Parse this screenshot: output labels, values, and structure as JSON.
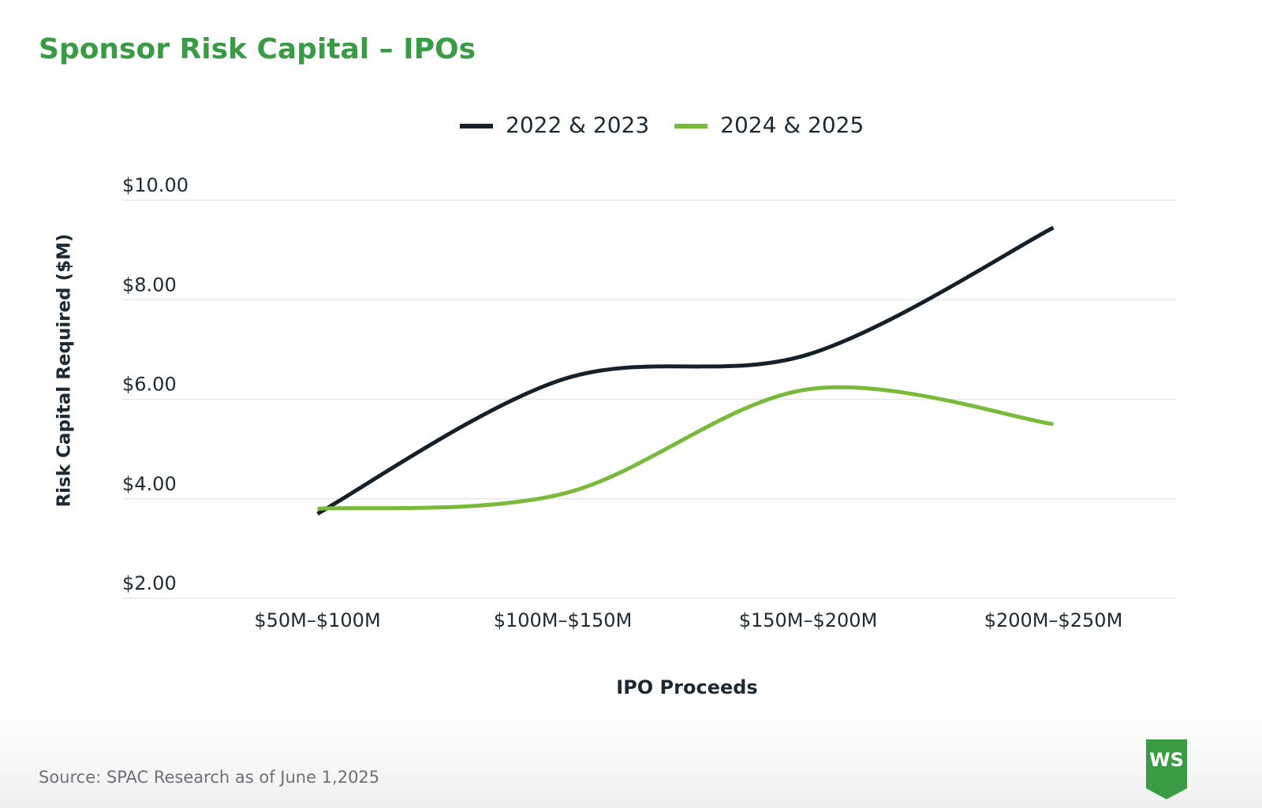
{
  "chart_data": {
    "type": "line",
    "title": "Sponsor Risk Capital – IPOs",
    "x_label": "IPO Proceeds",
    "y_label": "Risk Capital Required ($M)",
    "categories": [
      "$50M–$100M",
      "$100M–$150M",
      "$150M–$200M",
      "$200M–$250M"
    ],
    "series": [
      {
        "name": "2022 & 2023",
        "color": "#14212b",
        "values": [
          3.7,
          6.4,
          6.9,
          9.45
        ]
      },
      {
        "name": "2024 & 2025",
        "color": "#7aba3a",
        "values": [
          3.8,
          4.1,
          6.2,
          5.5
        ]
      }
    ],
    "ylim": [
      2,
      10
    ],
    "yticks": [
      {
        "value": 2,
        "label": "$2.00"
      },
      {
        "value": 4,
        "label": "$4.00"
      },
      {
        "value": 6,
        "label": "$6.00"
      },
      {
        "value": 8,
        "label": "$8.00"
      },
      {
        "value": 10,
        "label": "$10.00"
      }
    ],
    "grid": true,
    "smooth": true,
    "legend": "top",
    "source": "Source: SPAC Research as of June 1,2025",
    "logo": "WS"
  }
}
